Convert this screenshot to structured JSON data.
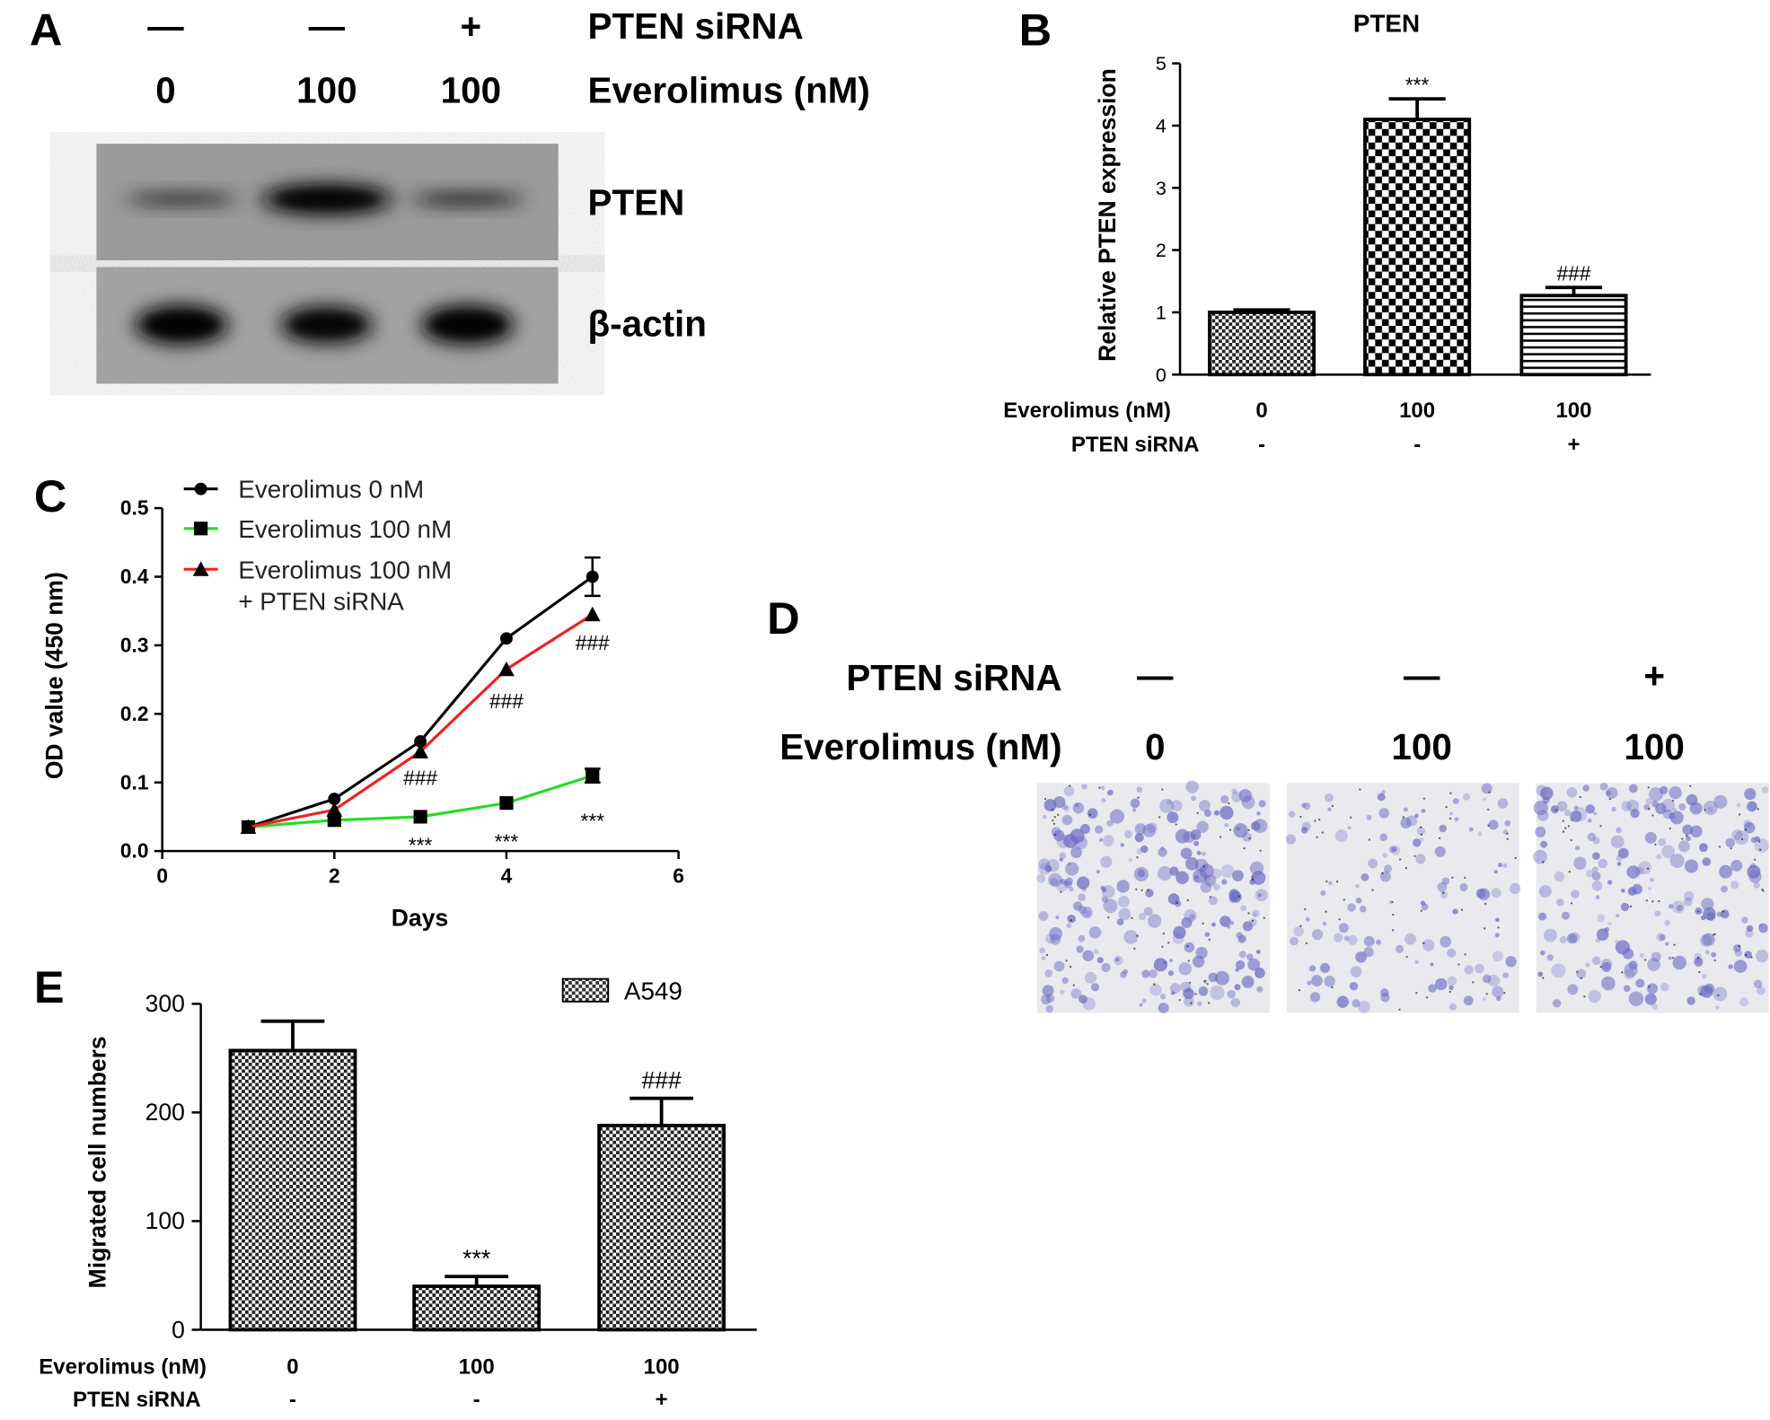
{
  "panel_a": {
    "letter": "A",
    "lanes": [
      {
        "sirna": "—",
        "dose": "0"
      },
      {
        "sirna": "—",
        "dose": "100"
      },
      {
        "sirna": "+",
        "dose": "100"
      }
    ],
    "row1_label": "PTEN siRNA",
    "row2_label": "Everolimus (nM)",
    "bands": [
      {
        "label": "PTEN",
        "intensity": [
          0.25,
          0.9,
          0.3
        ]
      },
      {
        "label": "β-actin",
        "intensity": [
          0.95,
          0.85,
          0.95
        ]
      }
    ]
  },
  "panel_d": {
    "letter": "D",
    "row1_label": "PTEN siRNA",
    "row2_label": "Everolimus (nM)",
    "lanes": [
      {
        "sirna": "—",
        "dose": "0",
        "density": 0.75
      },
      {
        "sirna": "—",
        "dose": "100",
        "density": 0.3
      },
      {
        "sirna": "+",
        "dose": "100",
        "density": 0.6
      }
    ],
    "stain_color": "#6b6bc4"
  },
  "chart_data": [
    {
      "panel": "B",
      "type": "bar",
      "title": "PTEN",
      "ylabel": "Relative PTEN expression",
      "ylim": [
        0,
        5
      ],
      "yticks": [
        "0",
        "1",
        "2",
        "3",
        "4",
        "5"
      ],
      "categories": [
        "0",
        "100",
        "100"
      ],
      "values": [
        1.0,
        4.1,
        1.27
      ],
      "errors": [
        0.04,
        0.33,
        0.13
      ],
      "annotations": [
        "",
        "***",
        "###"
      ],
      "patterns": [
        "fine-check",
        "coarse-check",
        "horizontal-lines"
      ],
      "condition_rows": [
        {
          "label": "Everolimus (nM)",
          "values": [
            "0",
            "100",
            "100"
          ]
        },
        {
          "label": "PTEN siRNA",
          "values": [
            "-",
            "-",
            "+"
          ]
        }
      ]
    },
    {
      "panel": "C",
      "type": "line",
      "xlabel": "Days",
      "ylabel": "OD value (450 nm)",
      "xlim": [
        0,
        6
      ],
      "ylim": [
        0,
        0.5
      ],
      "xticks": [
        "0",
        "2",
        "4",
        "6"
      ],
      "yticks": [
        "0.0",
        "0.1",
        "0.2",
        "0.3",
        "0.4",
        "0.5"
      ],
      "x": [
        1,
        2,
        3,
        4,
        5
      ],
      "legend_position": "top-left",
      "legend": [
        "Everolimus 0 nM",
        "Everolimus 100 nM",
        "Everolimus 100 nM",
        "+ PTEN siRNA"
      ],
      "series": [
        {
          "name": "Everolimus 0 nM",
          "color": "#000000",
          "marker": "circle",
          "values": [
            0.035,
            0.076,
            0.16,
            0.31,
            0.4
          ],
          "errors": [
            0,
            0,
            0,
            0,
            0.028
          ]
        },
        {
          "name": "Everolimus 100 nM",
          "color": "#22dd22",
          "marker": "square",
          "values": [
            0.035,
            0.045,
            0.05,
            0.07,
            0.11
          ],
          "errors": [
            0,
            0,
            0,
            0,
            0.01
          ]
        },
        {
          "name": "Everolimus 100 nM + PTEN siRNA",
          "color": "#ee2222",
          "marker": "triangle",
          "values": [
            0.035,
            0.06,
            0.145,
            0.265,
            0.345
          ],
          "errors": [
            0,
            0,
            0,
            0,
            0
          ]
        }
      ],
      "annotations": [
        {
          "x": 3,
          "y": 0.108,
          "text": "###"
        },
        {
          "x": 4,
          "y": 0.22,
          "text": "###"
        },
        {
          "x": 5,
          "y": 0.305,
          "text": "###"
        },
        {
          "x": 3,
          "y": 0.01,
          "text": "***"
        },
        {
          "x": 4,
          "y": 0.015,
          "text": "***"
        },
        {
          "x": 5,
          "y": 0.045,
          "text": "***"
        }
      ]
    },
    {
      "panel": "E",
      "type": "bar",
      "ylabel": "Migrated cell numbers",
      "ylim": [
        0,
        300
      ],
      "yticks": [
        "0",
        "100",
        "200",
        "300"
      ],
      "categories": [
        "0",
        "100",
        "100"
      ],
      "values": [
        257,
        40,
        188
      ],
      "errors": [
        27,
        9,
        25
      ],
      "annotations": [
        "",
        "***",
        "###"
      ],
      "legend": [
        "A549"
      ],
      "legend_position": "top-right",
      "condition_rows": [
        {
          "label": "Everolimus (nM)",
          "values": [
            "0",
            "100",
            "100"
          ]
        },
        {
          "label": "PTEN siRNA",
          "values": [
            "-",
            "-",
            "+"
          ]
        }
      ]
    }
  ]
}
